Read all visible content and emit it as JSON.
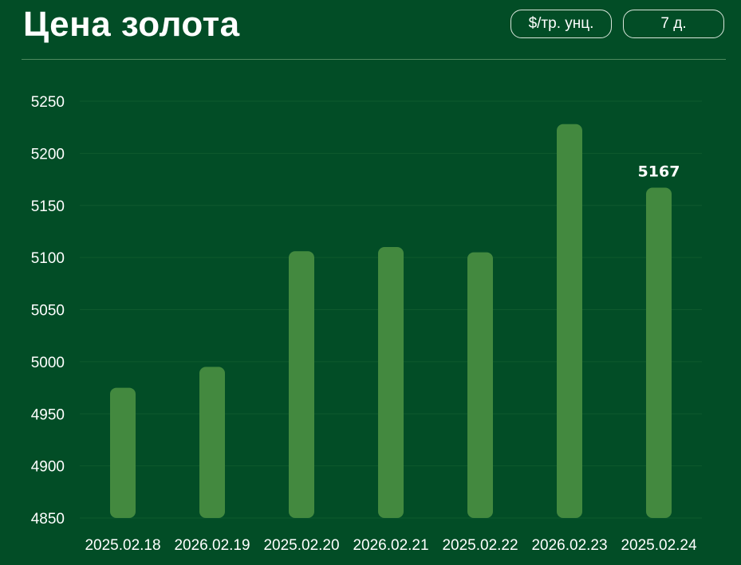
{
  "header": {
    "title": "Цена золота",
    "unit_label": "$/тр. унц.",
    "range_label": "7 д."
  },
  "colors": {
    "background": "#024d26",
    "bar": "#43893f",
    "text": "#ffffff"
  },
  "chart_data": {
    "type": "bar",
    "title": "Цена золота",
    "categories": [
      "2025.02.18",
      "2026.02.19",
      "2025.02.20",
      "2026.02.21",
      "2025.02.22",
      "2026.02.23",
      "2025.02.24"
    ],
    "series": [
      {
        "values": [
          4975,
          4995,
          5106,
          5110,
          5105,
          5228,
          5167
        ]
      }
    ],
    "ylim": [
      4850,
      5250
    ],
    "yticks": [
      4850,
      4900,
      4950,
      5000,
      5050,
      5100,
      5150,
      5200,
      5250
    ],
    "data_labels": [
      {
        "index": 6,
        "text": "5167"
      }
    ],
    "grid": true,
    "legend": "none"
  }
}
